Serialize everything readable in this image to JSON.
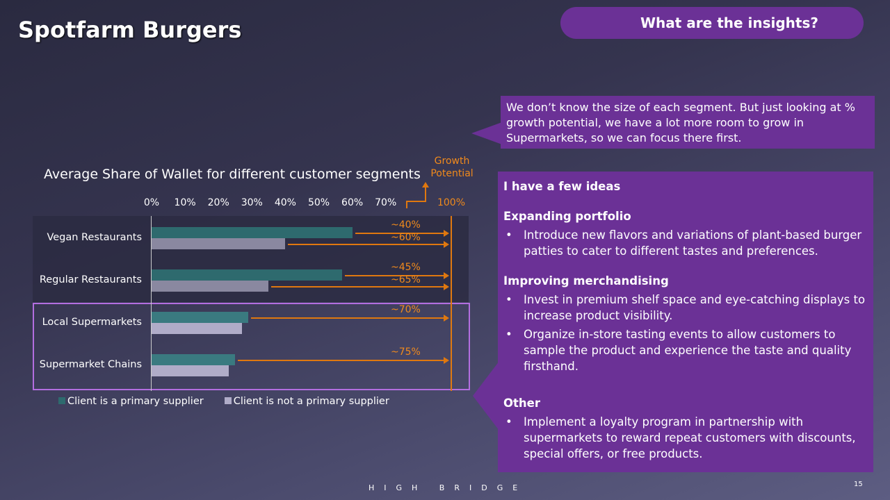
{
  "title": "Spotfarm Burgers",
  "insights_pill": "What are the insights?",
  "callout": "We don’t know the size of each segment. But just looking at % growth potential, we have a lot more room to grow in Supermarkets, so we can focus there first.",
  "ideas": {
    "heading": "I have a few ideas",
    "sections": [
      {
        "title": "Expanding portfolio",
        "bullets": [
          "Introduce new flavors and variations of plant-based burger patties to cater to different tastes and preferences."
        ]
      },
      {
        "title": "Improving merchandising",
        "bullets": [
          "Invest in premium shelf space and eye-catching displays to increase product visibility.",
          "Organize in-store tasting events to allow customers to sample the product and experience the taste and quality firsthand."
        ]
      },
      {
        "title": "Other",
        "bullets": [
          "Implement a loyalty program in partnership with supermarkets to reward repeat customers with discounts, special offers, or free products."
        ]
      }
    ]
  },
  "footer": "HIGH BRIDGE",
  "page_number": "15",
  "chart_data": {
    "type": "bar",
    "orientation": "horizontal",
    "title": "Average Share of Wallet for different customer segments",
    "categories": [
      "Vegan Restaurants",
      "Regular Restaurants",
      "Local Supermarkets",
      "Supermarket Chains"
    ],
    "series": [
      {
        "name": "Client is a primary supplier",
        "color": "#2e6a6e",
        "values": [
          60,
          57,
          29,
          25
        ]
      },
      {
        "name": "Client is not a primary supplier",
        "color": "#8a88a0",
        "values": [
          40,
          35,
          27,
          23
        ]
      }
    ],
    "x_ticks": [
      "0%",
      "10%",
      "20%",
      "30%",
      "40%",
      "50%",
      "60%",
      "70%"
    ],
    "xlim": [
      0,
      70
    ],
    "target_label": "100%",
    "growth_label": "Growth Potential",
    "growth_annotations": [
      {
        "category": "Vegan Restaurants",
        "series": 0,
        "label": "~40%"
      },
      {
        "category": "Vegan Restaurants",
        "series": 1,
        "label": "~60%"
      },
      {
        "category": "Regular Restaurants",
        "series": 0,
        "label": "~45%"
      },
      {
        "category": "Regular Restaurants",
        "series": 1,
        "label": "~65%"
      },
      {
        "category": "Local Supermarkets",
        "series": 0,
        "label": "~70%"
      },
      {
        "category": "Supermarket Chains",
        "series": 0,
        "label": "~75%"
      }
    ],
    "highlighted": [
      "Local Supermarkets",
      "Supermarket Chains"
    ],
    "legend_position": "bottom-left"
  }
}
